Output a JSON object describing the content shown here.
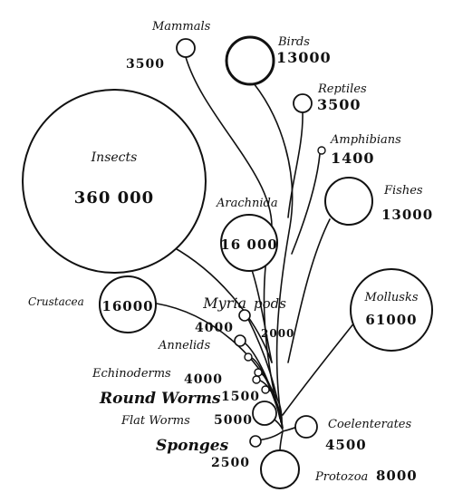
{
  "groups": {
    "mammals": {
      "name": "Mammals",
      "count": "3500"
    },
    "birds": {
      "name": "Birds",
      "count": "13000"
    },
    "reptiles": {
      "name": "Reptiles",
      "count": "3500"
    },
    "amphibians": {
      "name": "Amphibians",
      "count": "1400"
    },
    "insects": {
      "name": "Insects",
      "count": "360 000"
    },
    "arachnida": {
      "name": "Arachnida",
      "count": "16 000"
    },
    "fishes": {
      "name": "Fishes",
      "count": "13000"
    },
    "crustacea": {
      "name": "Crustacea",
      "count": "16000"
    },
    "myriapods": {
      "name_part1": "Myria",
      "name_part2": "pods",
      "count": "2000"
    },
    "mollusks": {
      "name": "Mollusks",
      "count": "61000"
    },
    "annelids": {
      "name": "Annelids",
      "count": "4000"
    },
    "echinoderms": {
      "name": "Echinoderms",
      "count": "4000"
    },
    "round_worms": {
      "name": "Round Worms",
      "count": "1500"
    },
    "flat_worms": {
      "name": "Flat Worms",
      "count": "5000"
    },
    "sponges": {
      "name": "Sponges",
      "count": "2500"
    },
    "coelenterates": {
      "name": "Coelenterates",
      "count": "4500"
    },
    "protozoa": {
      "name": "Protozoa",
      "count": "8000"
    }
  }
}
